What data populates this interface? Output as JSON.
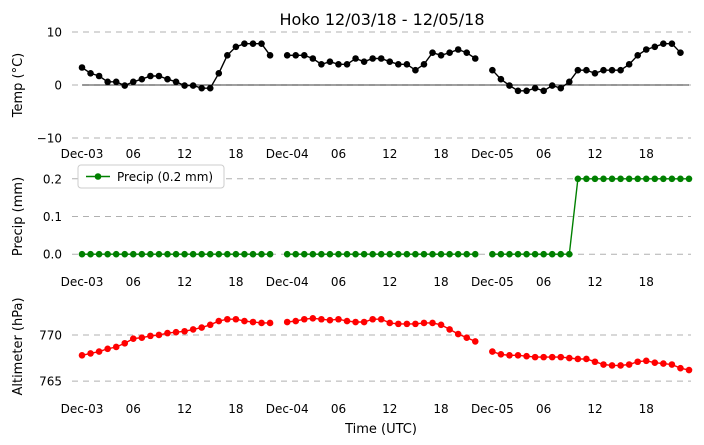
{
  "title": "Hoko 12/03/18 - 12/05/18",
  "xlabel": "Time (UTC)",
  "x_tick_labels": [
    "Dec-03",
    "06",
    "12",
    "18",
    "Dec-04",
    "06",
    "12",
    "18",
    "Dec-05",
    "06",
    "12",
    "18"
  ],
  "x_tick_hours": [
    0,
    6,
    12,
    18,
    24,
    30,
    36,
    42,
    48,
    54,
    60,
    66
  ],
  "x_range_hours": [
    0,
    71
  ],
  "colors": {
    "temp": "#000000",
    "precip": "#008000",
    "altim": "#ff0000",
    "grid": "#b0b0b0"
  },
  "chart_data": [
    {
      "type": "line",
      "name": "temperature",
      "ylabel": "Temp ($^{\\circ}$C)",
      "ylabel_display": "Temp (°C)",
      "ylim": [
        -10,
        10
      ],
      "yticks": [
        -10,
        0,
        10
      ],
      "zero_line": true,
      "x": [
        0,
        1,
        2,
        3,
        4,
        5,
        6,
        7,
        8,
        9,
        10,
        11,
        12,
        13,
        14,
        15,
        16,
        17,
        18,
        19,
        20,
        21,
        22,
        23,
        24,
        25,
        26,
        27,
        28,
        29,
        30,
        31,
        32,
        33,
        34,
        35,
        36,
        37,
        38,
        39,
        40,
        41,
        42,
        43,
        44,
        45,
        46,
        47,
        48,
        49,
        50,
        51,
        52,
        53,
        54,
        55,
        56,
        57,
        58,
        59,
        60,
        61,
        62,
        63,
        64,
        65,
        66,
        67,
        68,
        69,
        70,
        71
      ],
      "values": [
        3.3,
        2.2,
        1.7,
        0.6,
        0.6,
        -0.1,
        0.6,
        1.1,
        1.7,
        1.7,
        1.1,
        0.6,
        -0.1,
        -0.1,
        -0.6,
        -0.6,
        2.2,
        5.6,
        7.2,
        7.8,
        7.8,
        7.8,
        5.6,
        null,
        5.6,
        5.6,
        5.6,
        5.0,
        3.9,
        4.4,
        3.9,
        3.9,
        5.0,
        4.4,
        5.0,
        5.0,
        4.4,
        3.9,
        3.9,
        2.8,
        3.9,
        6.1,
        5.6,
        6.1,
        6.7,
        6.1,
        5.0,
        null,
        2.8,
        1.1,
        -0.1,
        -1.1,
        -1.1,
        -0.6,
        -1.1,
        -0.1,
        -0.6,
        0.6,
        2.8,
        2.8,
        2.2,
        2.8,
        2.8,
        2.8,
        3.9,
        5.6,
        6.7,
        7.2,
        7.8,
        7.8,
        6.1,
        null
      ]
    },
    {
      "type": "line",
      "name": "precipitation",
      "ylabel": "Precip (mm)",
      "ylim": [
        -0.01,
        0.21
      ],
      "yticks": [
        0.0,
        0.1,
        0.2
      ],
      "ytick_labels": [
        "0.0",
        "0.1",
        "0.2"
      ],
      "legend": "Precip (0.2 mm)",
      "legend_loc": "upper-left",
      "x": [
        0,
        1,
        2,
        3,
        4,
        5,
        6,
        7,
        8,
        9,
        10,
        11,
        12,
        13,
        14,
        15,
        16,
        17,
        18,
        19,
        20,
        21,
        22,
        23,
        24,
        25,
        26,
        27,
        28,
        29,
        30,
        31,
        32,
        33,
        34,
        35,
        36,
        37,
        38,
        39,
        40,
        41,
        42,
        43,
        44,
        45,
        46,
        47,
        48,
        49,
        50,
        51,
        52,
        53,
        54,
        55,
        56,
        57,
        58,
        59,
        60,
        61,
        62,
        63,
        64,
        65,
        66,
        67,
        68,
        69,
        70,
        71
      ],
      "values": [
        0,
        0,
        0,
        0,
        0,
        0,
        0,
        0,
        0,
        0,
        0,
        0,
        0,
        0,
        0,
        0,
        0,
        0,
        0,
        0,
        0,
        0,
        0,
        null,
        0,
        0,
        0,
        0,
        0,
        0,
        0,
        0,
        0,
        0,
        0,
        0,
        0,
        0,
        0,
        0,
        0,
        0,
        0,
        0,
        0,
        0,
        0,
        null,
        0,
        0,
        0,
        0,
        0,
        0,
        0,
        0,
        0,
        0,
        0.2,
        0.2,
        0.2,
        0.2,
        0.2,
        0.2,
        0.2,
        0.2,
        0.2,
        0.2,
        0.2,
        0.2,
        0.2,
        0.2
      ]
    },
    {
      "type": "line",
      "name": "altimeter",
      "ylabel": "Altimeter (hPa)",
      "ylim": [
        763.5,
        774
      ],
      "yticks": [
        765,
        770
      ],
      "x": [
        0,
        1,
        2,
        3,
        4,
        5,
        6,
        7,
        8,
        9,
        10,
        11,
        12,
        13,
        14,
        15,
        16,
        17,
        18,
        19,
        20,
        21,
        22,
        23,
        24,
        25,
        26,
        27,
        28,
        29,
        30,
        31,
        32,
        33,
        34,
        35,
        36,
        37,
        38,
        39,
        40,
        41,
        42,
        43,
        44,
        45,
        46,
        47,
        48,
        49,
        50,
        51,
        52,
        53,
        54,
        55,
        56,
        57,
        58,
        59,
        60,
        61,
        62,
        63,
        64,
        65,
        66,
        67,
        68,
        69,
        70,
        71
      ],
      "values": [
        767.8,
        768.0,
        768.2,
        768.5,
        768.7,
        769.1,
        769.6,
        769.7,
        769.9,
        770.0,
        770.2,
        770.3,
        770.4,
        770.6,
        770.8,
        771.1,
        771.5,
        771.7,
        771.7,
        771.5,
        771.4,
        771.3,
        771.3,
        null,
        771.4,
        771.5,
        771.7,
        771.8,
        771.7,
        771.6,
        771.7,
        771.5,
        771.4,
        771.4,
        771.7,
        771.7,
        771.3,
        771.2,
        771.2,
        771.2,
        771.3,
        771.3,
        771.1,
        770.6,
        770.1,
        769.7,
        769.3,
        null,
        768.2,
        767.9,
        767.8,
        767.8,
        767.7,
        767.6,
        767.6,
        767.6,
        767.6,
        767.5,
        767.4,
        767.4,
        767.1,
        766.8,
        766.7,
        766.7,
        766.8,
        767.1,
        767.2,
        767.0,
        766.9,
        766.8,
        766.4,
        766.2
      ]
    }
  ]
}
